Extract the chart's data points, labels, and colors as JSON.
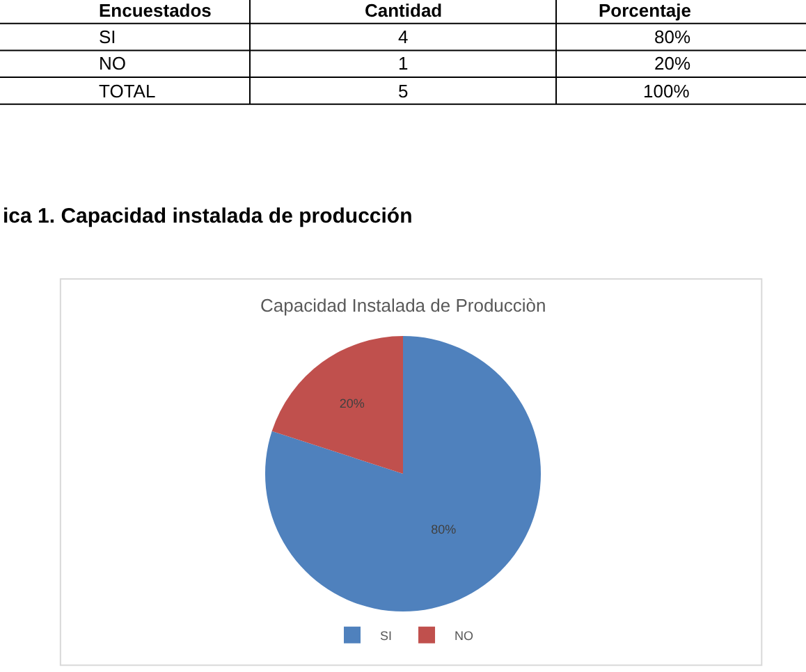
{
  "chart_data": {
    "type": "pie",
    "title": "Capacidad Instalada de Producciòn",
    "categories": [
      "SI",
      "NO"
    ],
    "values": [
      80,
      20
    ],
    "colors": [
      "#4f81bd",
      "#c0504d"
    ],
    "value_labels": [
      "80%",
      "20%"
    ],
    "legend": "bottom",
    "annotations": [
      "Encuestados",
      "Cantidad",
      "Porcentaje",
      "SI",
      "4",
      "80%",
      "NO",
      "1",
      "20%",
      "TOTAL",
      "5",
      "100%",
      "ica 1. Capacidad instalada de producción"
    ]
  }
}
